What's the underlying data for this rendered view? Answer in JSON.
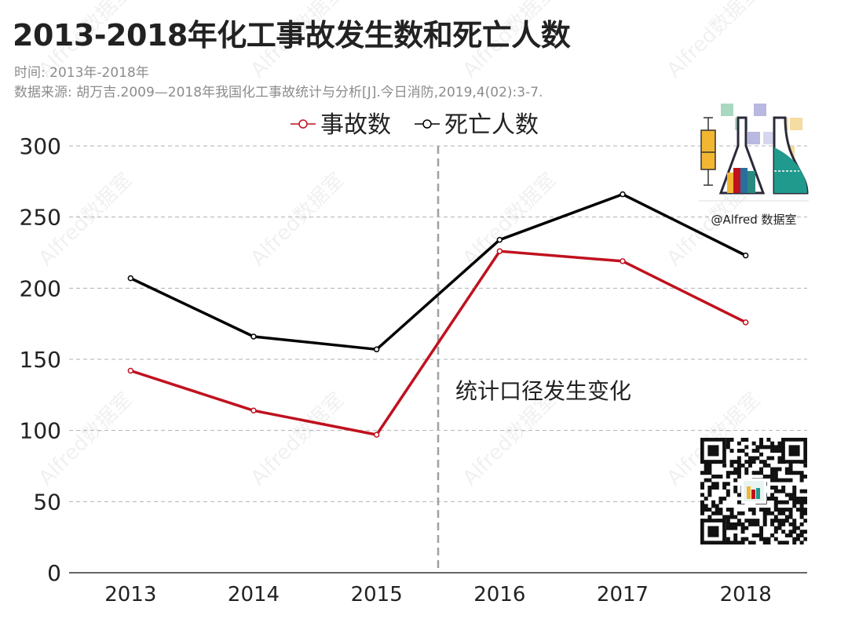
{
  "title": "2013-2018年化工事故发生数和死亡人数",
  "subtitle": "时间: 2013年-2018年",
  "source": "数据来源: 胡万吉.2009—2018年我国化工事故统计与分析[J].今日消防,2019,4(02):3-7.",
  "annotation": "统计口径发生变化",
  "watermark": "Alfred数据室",
  "logo_caption": "@Alfred 数据室",
  "colors": {
    "accident": "#c0111f",
    "death": "#000000",
    "grid": "#b0b0b0",
    "divider": "#a0a0a0"
  },
  "chart_data": {
    "type": "line",
    "categories": [
      "2013",
      "2014",
      "2015",
      "2016",
      "2017",
      "2018"
    ],
    "series": [
      {
        "name": "事故数",
        "values": [
          142,
          114,
          97,
          226,
          219,
          176
        ]
      },
      {
        "name": "死亡人数",
        "values": [
          207,
          166,
          157,
          234,
          266,
          223
        ]
      }
    ],
    "ylim": [
      0,
      300
    ],
    "yticks": [
      0,
      50,
      100,
      150,
      200,
      250,
      300
    ],
    "grid": true,
    "legend": "top-center",
    "divider_between": [
      "2015",
      "2016"
    ]
  }
}
